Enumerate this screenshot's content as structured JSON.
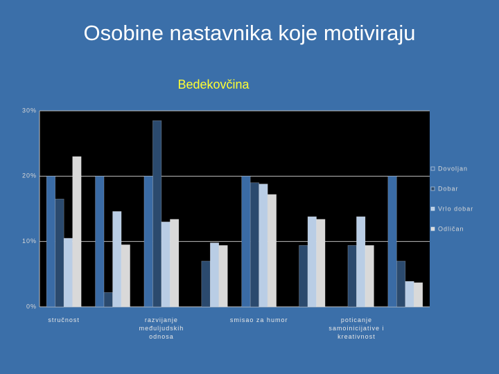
{
  "chart_data": {
    "type": "bar",
    "title": "Osobine nastavnika koje motiviraju",
    "subtitle": "Bedekovčina",
    "categories": [
      "stručnost",
      null,
      "razvijanje međuljudskih odnosa",
      null,
      "smisao za humor",
      null,
      "poticanje samoinicijative i kreativnost",
      null
    ],
    "series": [
      {
        "name": "Dovoljan",
        "color": "#3a6ba5",
        "values": [
          20,
          20,
          20,
          0,
          20,
          0,
          0,
          20
        ]
      },
      {
        "name": "Dobar",
        "color": "#2b4a6e",
        "values": [
          16.5,
          2.2,
          28.5,
          7,
          19,
          9.4,
          9.4,
          7
        ]
      },
      {
        "name": "Vrlo dobar",
        "color": "#b9cde5",
        "values": [
          10.5,
          14.6,
          13,
          9.8,
          18.8,
          13.8,
          13.8,
          3.9
        ]
      },
      {
        "name": "Odličan",
        "color": "#d9d9d9",
        "values": [
          23,
          9.5,
          13.4,
          9.4,
          17.2,
          13.4,
          9.4,
          3.7
        ]
      }
    ],
    "ylim": [
      0,
      30
    ],
    "yticks": [
      {
        "value": 0,
        "label": "0%"
      },
      {
        "value": 10,
        "label": "10%"
      },
      {
        "value": 20,
        "label": "20%"
      },
      {
        "value": 30,
        "label": "30%"
      }
    ],
    "grid": true,
    "legend": "right"
  }
}
